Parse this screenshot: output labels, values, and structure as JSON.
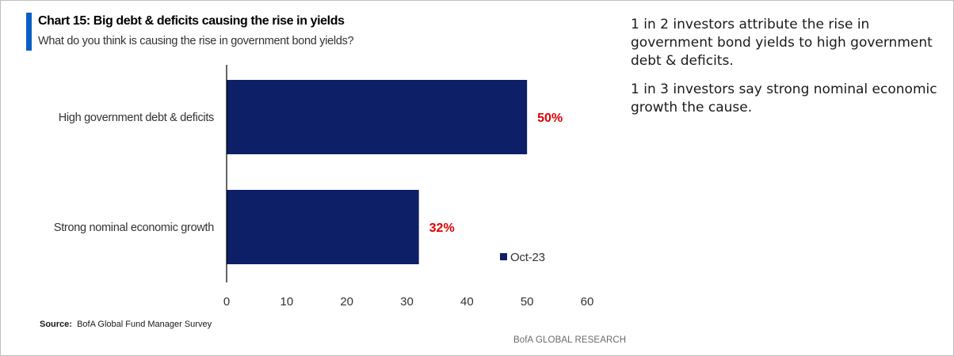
{
  "header": {
    "title": "Chart 15: Big debt & deficits causing the rise in yields",
    "subtitle": "What do you think is causing the rise in government bond yields?"
  },
  "commentary": [
    "1 in 2 investors attribute the rise in government bond yields to high government debt & deficits.",
    "1 in 3 investors say strong nominal economic growth the cause."
  ],
  "footer": {
    "source_label": "Source:",
    "source_text": "BofA Global Fund Manager Survey",
    "brand": "BofA GLOBAL RESEARCH"
  },
  "colors": {
    "bar": "#0d1f66",
    "data_label": "#e00000",
    "accent": "#0a5fc4"
  },
  "chart_data": {
    "type": "bar",
    "orientation": "horizontal",
    "categories": [
      "High government debt & deficits",
      "Strong nominal economic growth"
    ],
    "series": [
      {
        "name": "Oct-23",
        "values": [
          50,
          32
        ],
        "data_labels": [
          "50%",
          "32%"
        ]
      }
    ],
    "xlim": [
      0,
      60
    ],
    "xticks": [
      0,
      10,
      20,
      30,
      40,
      50,
      60
    ],
    "grid": false,
    "legend": "bottom-right inside plot"
  }
}
